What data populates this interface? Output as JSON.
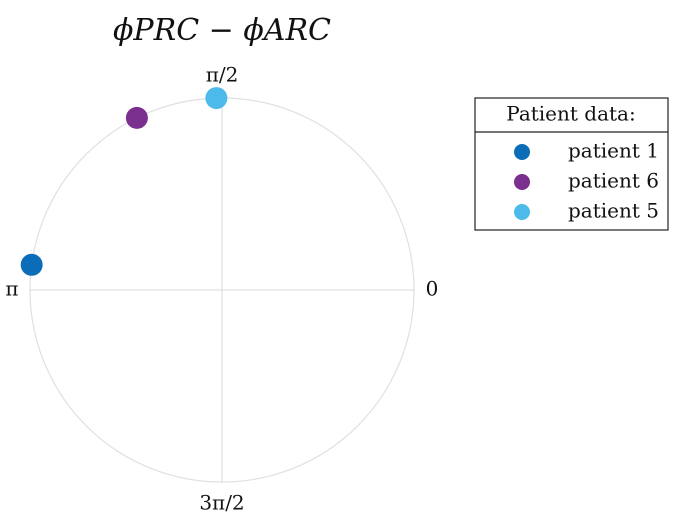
{
  "chart_data": {
    "type": "polar",
    "title": "ϕPRC − ϕARC",
    "legend_title": "Patient data:",
    "legend": "right",
    "grid": true,
    "angle_ticks": [
      {
        "value": 0,
        "label": "0"
      },
      {
        "value": 1.5708,
        "label": "π/2"
      },
      {
        "value": 3.1416,
        "label": "π"
      },
      {
        "value": 4.7124,
        "label": "3π/2"
      }
    ],
    "series": [
      {
        "name": "patient 1",
        "color": "#0b6db7",
        "values": [
          3.01
        ]
      },
      {
        "name": "patient 6",
        "color": "#7b2f8e",
        "values": [
          2.03
        ]
      },
      {
        "name": "patient 5",
        "color": "#4cbbea",
        "values": [
          1.6
        ]
      }
    ]
  }
}
